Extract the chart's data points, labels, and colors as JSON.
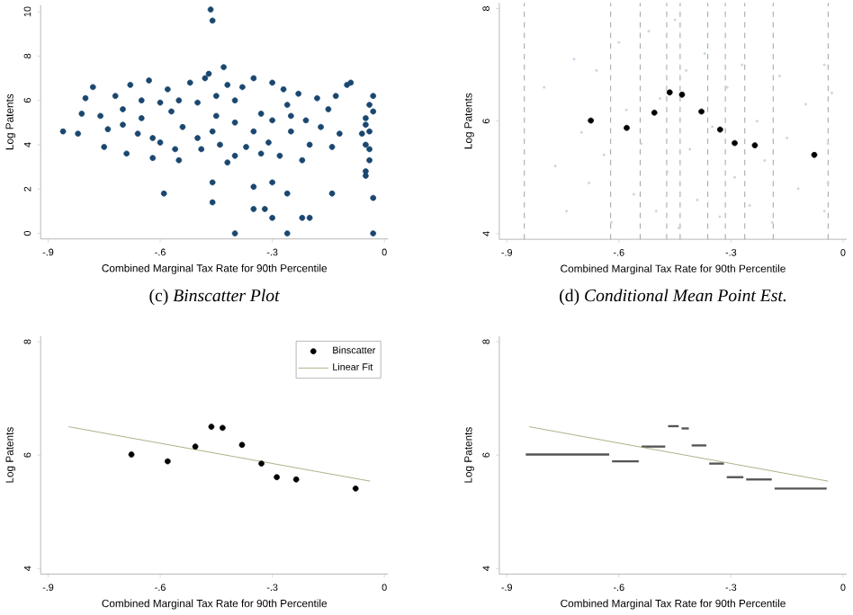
{
  "chart_data": [
    {
      "type": "scatter",
      "xlabel": "Combined Marginal Tax Rate for 90th Percentile",
      "ylabel": "Log Patents",
      "xlim": [
        -0.92,
        0.01
      ],
      "ylim": [
        -0.25,
        10.3
      ],
      "xticks": [
        {
          "value": -0.9,
          "label": "-.9"
        },
        {
          "value": -0.6,
          "label": "-.6"
        },
        {
          "value": -0.3,
          "label": "-.3"
        },
        0
      ],
      "yticks": [
        0,
        2,
        4,
        6,
        8,
        10
      ],
      "series": [
        {
          "color": "#1a476f",
          "x": [
            -0.86,
            -0.82,
            -0.81,
            -0.8,
            -0.78,
            -0.76,
            -0.75,
            -0.74,
            -0.72,
            -0.7,
            -0.69,
            -0.68,
            -0.66,
            -0.65,
            -0.63,
            -0.62,
            -0.59,
            -0.6,
            -0.58,
            -0.57,
            -0.55,
            -0.54,
            -0.52,
            -0.5,
            -0.49,
            -0.47,
            -0.46,
            -0.45,
            -0.465,
            -0.46,
            -0.46,
            -0.46,
            -0.43,
            -0.42,
            -0.4,
            -0.38,
            -0.37,
            -0.4,
            -0.35,
            -0.35,
            -0.32,
            -0.3,
            -0.3,
            -0.26,
            -0.26,
            -0.22,
            -0.2,
            -0.14,
            -0.03,
            -0.03,
            -0.35,
            -0.33,
            -0.31,
            -0.3,
            -0.28,
            -0.26,
            -0.25,
            -0.23,
            -0.22,
            -0.21,
            -0.2,
            -0.18,
            -0.17,
            -0.15,
            -0.14,
            -0.13,
            -0.12,
            -0.1,
            -0.09,
            -0.05,
            -0.04,
            -0.05,
            -0.04,
            -0.05,
            -0.04,
            -0.03,
            -0.05,
            -0.04,
            -0.03,
            -0.06,
            -0.05,
            -0.55,
            -0.5,
            -0.45,
            -0.4,
            -0.35,
            -0.3,
            -0.25,
            -0.6,
            -0.65,
            -0.7,
            -0.42,
            -0.48,
            -0.33,
            -0.27,
            -0.4,
            -0.56,
            -0.62,
            -0.44
          ],
          "values": [
            4.6,
            4.5,
            5.4,
            6.1,
            6.6,
            5.3,
            3.9,
            4.7,
            6.2,
            5.6,
            3.6,
            6.7,
            4.5,
            5.2,
            6.9,
            3.4,
            1.8,
            4.1,
            6.5,
            5.5,
            3.3,
            4.8,
            6.8,
            5.9,
            3.8,
            7.2,
            4.6,
            6.2,
            10.1,
            9.6,
            1.4,
            2.3,
            7.5,
            3.2,
            5.0,
            6.6,
            3.9,
            0,
            2.1,
            1.1,
            1.1,
            0.7,
            2.3,
            1.8,
            0,
            0.7,
            0.7,
            1.8,
            0,
            1.6,
            7.0,
            5.4,
            4.1,
            6.8,
            3.5,
            5.8,
            4.6,
            6.3,
            3.3,
            5.1,
            4.0,
            6.1,
            4.8,
            5.6,
            3.9,
            6.2,
            4.5,
            6.7,
            6.8,
            2.8,
            3.3,
            4.0,
            4.6,
            5.2,
            5.8,
            6.2,
            4.9,
            3.8,
            5.5,
            4.5,
            2.6,
            6.0,
            4.3,
            5.3,
            6.0,
            4.6,
            5.1,
            5.3,
            5.9,
            6.0,
            4.9,
            6.7,
            7.0,
            3.6,
            6.5,
            3.5,
            3.8,
            4.3,
            4.0
          ]
        }
      ]
    },
    {
      "type": "scatter",
      "xlabel": "Combined Marginal Tax Rate for 90th Percentile",
      "ylabel": "Log Patents",
      "xlim": [
        -0.92,
        0.01
      ],
      "ylim": [
        3.9,
        8.1
      ],
      "xticks": [
        {
          "value": -0.9,
          "label": "-.9"
        },
        {
          "value": -0.6,
          "label": "-.6"
        },
        {
          "value": -0.3,
          "label": "-.3"
        },
        0
      ],
      "yticks": [
        4,
        6,
        8
      ],
      "ref_lines": [
        {
          "axis": "x",
          "value": -0.853,
          "color": "#888888",
          "line_style": "dashed"
        },
        {
          "axis": "x",
          "value": -0.622,
          "color": "#888888",
          "line_style": "dashed"
        },
        {
          "axis": "x",
          "value": -0.543,
          "color": "#888888",
          "line_style": "dashed"
        },
        {
          "axis": "x",
          "value": -0.472,
          "color": "#888888",
          "line_style": "dashed"
        },
        {
          "axis": "x",
          "value": -0.436,
          "color": "#888888",
          "line_style": "dashed"
        },
        {
          "axis": "x",
          "value": -0.362,
          "color": "#888888",
          "line_style": "dashed"
        },
        {
          "axis": "x",
          "value": -0.315,
          "color": "#888888",
          "line_style": "dashed"
        },
        {
          "axis": "x",
          "value": -0.263,
          "color": "#888888",
          "line_style": "dashed"
        },
        {
          "axis": "x",
          "value": -0.187,
          "color": "#888888",
          "line_style": "dashed"
        },
        {
          "axis": "x",
          "value": -0.04,
          "color": "#888888",
          "line_style": "dashed"
        }
      ],
      "series": [
        {
          "color": "#c8d8e4",
          "x": [
            -0.8,
            -0.77,
            -0.74,
            -0.72,
            -0.7,
            -0.68,
            -0.66,
            -0.64,
            -0.62,
            -0.6,
            -0.58,
            -0.56,
            -0.54,
            -0.52,
            -0.5,
            -0.49,
            -0.47,
            -0.45,
            -0.44,
            -0.42,
            -0.41,
            -0.39,
            -0.37,
            -0.35,
            -0.33,
            -0.31,
            -0.29,
            -0.27,
            -0.25,
            -0.23,
            -0.21,
            -0.19,
            -0.17,
            -0.15,
            -0.12,
            -0.1,
            -0.05,
            -0.04,
            -0.03,
            -0.05,
            -0.04
          ],
          "values": [
            6.6,
            5.2,
            4.4,
            7.1,
            5.8,
            4.9,
            6.9,
            5.4,
            4.2,
            7.4,
            6.2,
            4.7,
            5.6,
            7.6,
            4.4,
            6.4,
            5.1,
            7.8,
            4.1,
            6.9,
            5.5,
            4.6,
            7.2,
            5.9,
            4.3,
            6.6,
            5.0,
            7.0,
            4.5,
            6.0,
            5.3,
            4.2,
            6.8,
            5.7,
            4.8,
            6.3,
            4.4,
            5.6,
            6.5,
            7.0,
            4.9
          ]
        },
        {
          "color": "#000000",
          "x": [
            -0.675,
            -0.579,
            -0.505,
            -0.464,
            -0.431,
            -0.379,
            -0.329,
            -0.29,
            -0.236,
            -0.077
          ],
          "values": [
            6.01,
            5.88,
            6.15,
            6.51,
            6.47,
            6.17,
            5.85,
            5.61,
            5.57,
            5.4
          ]
        }
      ]
    },
    {
      "type": "scatter",
      "title": "(c) *Binscatter Plot*",
      "xlabel": "Combined Marginal Tax Rate for 90th Percentile",
      "ylabel": "Log Patents",
      "xlim": [
        -0.92,
        0.01
      ],
      "ylim": [
        3.9,
        8.1
      ],
      "xticks": [
        {
          "value": -0.9,
          "label": "-.9"
        },
        {
          "value": -0.6,
          "label": "-.6"
        },
        {
          "value": -0.3,
          "label": "-.3"
        },
        0
      ],
      "yticks": [
        4,
        6,
        8
      ],
      "legend": "top right",
      "series": [
        {
          "name": "Binscatter",
          "color": "#000000",
          "x": [
            -0.677,
            -0.58,
            -0.506,
            -0.463,
            -0.433,
            -0.381,
            -0.329,
            -0.288,
            -0.236,
            -0.077
          ],
          "values": [
            6.01,
            5.89,
            6.15,
            6.5,
            6.48,
            6.18,
            5.85,
            5.61,
            5.57,
            5.41
          ]
        },
        {
          "name": "Linear Fit",
          "type": "line",
          "color": "#9a9a6a",
          "x": [
            -0.845,
            -0.038
          ],
          "values": [
            6.5,
            5.54
          ]
        }
      ]
    },
    {
      "type": "line",
      "title": "(d) *Conditional Mean Point Est.*",
      "xlabel": "Combined Marginal Tax Rate for 90th Percentile",
      "ylabel": "Log Patents",
      "xlim": [
        -0.92,
        0.01
      ],
      "ylim": [
        3.9,
        8.1
      ],
      "xticks": [
        {
          "value": -0.9,
          "label": "-.9"
        },
        {
          "value": -0.6,
          "label": "-.6"
        },
        {
          "value": -0.3,
          "label": "-.3"
        },
        0
      ],
      "yticks": [
        4,
        6,
        8
      ],
      "series": [
        {
          "color": "#555555",
          "x": [
            -0.853,
            -0.622
          ],
          "values": [
            6.01,
            6.01
          ]
        },
        {
          "color": "#555555",
          "x": [
            -0.622,
            -0.543
          ],
          "values": [
            5.89,
            5.89
          ]
        },
        {
          "color": "#555555",
          "x": [
            -0.543,
            -0.472
          ],
          "values": [
            6.15,
            6.15
          ]
        },
        {
          "color": "#555555",
          "x": [
            -0.472,
            -0.436
          ],
          "values": [
            6.51,
            6.51
          ]
        },
        {
          "color": "#555555",
          "x": [
            -0.436,
            -0.409
          ],
          "values": [
            6.47,
            6.47
          ]
        },
        {
          "color": "#555555",
          "x": [
            -0.409,
            -0.362
          ],
          "values": [
            6.17,
            6.17
          ]
        },
        {
          "color": "#555555",
          "x": [
            -0.362,
            -0.315
          ],
          "values": [
            5.85,
            5.85
          ]
        },
        {
          "color": "#555555",
          "x": [
            -0.315,
            -0.263
          ],
          "values": [
            5.61,
            5.61
          ]
        },
        {
          "color": "#555555",
          "x": [
            -0.263,
            -0.187
          ],
          "values": [
            5.57,
            5.57
          ]
        },
        {
          "color": "#555555",
          "x": [
            -0.187,
            -0.04
          ],
          "values": [
            5.41,
            5.41
          ]
        },
        {
          "color": "#9a9a6a",
          "x": [
            -0.84,
            -0.04
          ],
          "values": [
            6.5,
            5.54
          ]
        }
      ]
    }
  ]
}
